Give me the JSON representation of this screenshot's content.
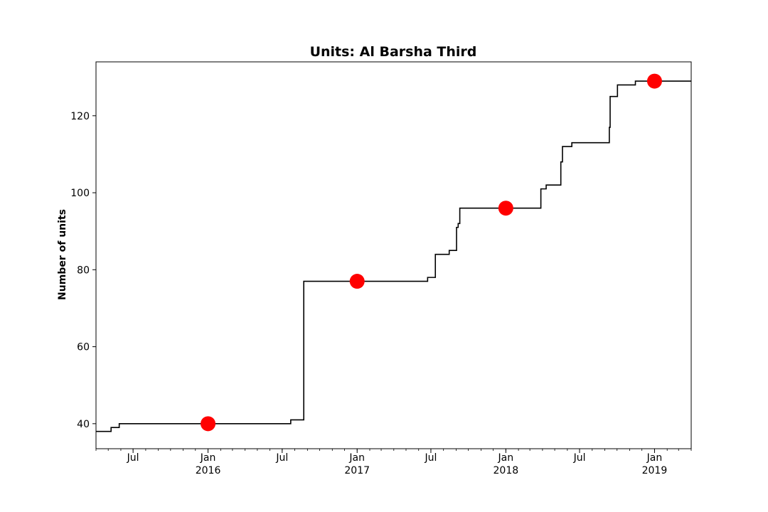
{
  "chart_data": {
    "type": "line",
    "title": "Units: Al Barsha Third",
    "xlabel": "",
    "ylabel": "Number of units",
    "xlim": [
      "2015-04-01",
      "2019-04-01"
    ],
    "ylim": [
      33.5,
      134
    ],
    "grid": false,
    "legend": "none",
    "y_ticks": [
      40,
      60,
      80,
      100,
      120
    ],
    "x_major_ticks": [
      {
        "date": "2015-07-01",
        "label": "Jul",
        "sublabel": ""
      },
      {
        "date": "2016-01-01",
        "label": "Jan",
        "sublabel": "2016"
      },
      {
        "date": "2016-07-01",
        "label": "Jul",
        "sublabel": ""
      },
      {
        "date": "2017-01-01",
        "label": "Jan",
        "sublabel": "2017"
      },
      {
        "date": "2017-07-01",
        "label": "Jul",
        "sublabel": ""
      },
      {
        "date": "2018-01-01",
        "label": "Jan",
        "sublabel": "2018"
      },
      {
        "date": "2018-07-01",
        "label": "Jul",
        "sublabel": ""
      },
      {
        "date": "2019-01-01",
        "label": "Jan",
        "sublabel": "2019"
      }
    ],
    "series": [
      {
        "kind": "step",
        "color": "#000000",
        "points": [
          {
            "x": "2015-04-01",
            "y": 38
          },
          {
            "x": "2015-05-08",
            "y": 39
          },
          {
            "x": "2015-05-28",
            "y": 40
          },
          {
            "x": "2016-07-22",
            "y": 41
          },
          {
            "x": "2016-08-23",
            "y": 77
          },
          {
            "x": "2017-06-23",
            "y": 78
          },
          {
            "x": "2017-07-12",
            "y": 84
          },
          {
            "x": "2017-08-15",
            "y": 85
          },
          {
            "x": "2017-09-02",
            "y": 91
          },
          {
            "x": "2017-09-06",
            "y": 92
          },
          {
            "x": "2017-09-10",
            "y": 96
          },
          {
            "x": "2018-03-28",
            "y": 101
          },
          {
            "x": "2018-04-10",
            "y": 102
          },
          {
            "x": "2018-05-16",
            "y": 108
          },
          {
            "x": "2018-05-20",
            "y": 112
          },
          {
            "x": "2018-06-12",
            "y": 113
          },
          {
            "x": "2018-09-12",
            "y": 117
          },
          {
            "x": "2018-09-14",
            "y": 125
          },
          {
            "x": "2018-10-02",
            "y": 128
          },
          {
            "x": "2018-11-15",
            "y": 129
          },
          {
            "x": "2019-04-01",
            "y": 129
          }
        ]
      },
      {
        "kind": "markers",
        "color": "#ff0000",
        "points": [
          {
            "x": "2016-01-01",
            "y": 40
          },
          {
            "x": "2017-01-01",
            "y": 77
          },
          {
            "x": "2018-01-01",
            "y": 96
          },
          {
            "x": "2019-01-01",
            "y": 129
          }
        ]
      }
    ]
  }
}
